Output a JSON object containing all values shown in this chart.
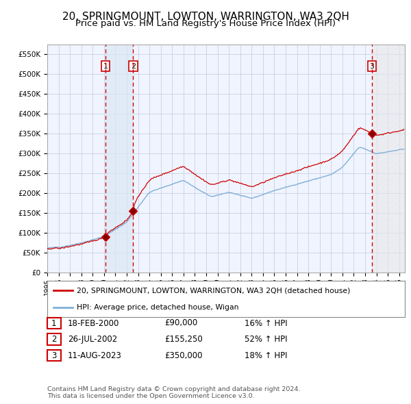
{
  "title": "20, SPRINGMOUNT, LOWTON, WARRINGTON, WA3 2QH",
  "subtitle": "Price paid vs. HM Land Registry's House Price Index (HPI)",
  "title_fontsize": 11,
  "subtitle_fontsize": 9.5,
  "background_color": "#ffffff",
  "plot_bg_color": "#f0f4ff",
  "grid_color": "#c8d0e0",
  "sale_color": "#cc0000",
  "hpi_color": "#7fb0d8",
  "ylim": [
    0,
    575000
  ],
  "yticks": [
    0,
    50000,
    100000,
    150000,
    200000,
    250000,
    300000,
    350000,
    400000,
    450000,
    500000,
    550000
  ],
  "ytick_labels": [
    "£0",
    "£50K",
    "£100K",
    "£150K",
    "£200K",
    "£250K",
    "£300K",
    "£350K",
    "£400K",
    "£450K",
    "£500K",
    "£550K"
  ],
  "xlim_start": 1995.3,
  "xlim_end": 2026.5,
  "xticks": [
    1995,
    1996,
    1997,
    1998,
    1999,
    2000,
    2001,
    2002,
    2003,
    2004,
    2005,
    2006,
    2007,
    2008,
    2009,
    2010,
    2011,
    2012,
    2013,
    2014,
    2015,
    2016,
    2017,
    2018,
    2019,
    2020,
    2021,
    2022,
    2023,
    2024,
    2025,
    2026
  ],
  "sale1_date": 2000.13,
  "sale1_price": 90000,
  "sale2_date": 2002.57,
  "sale2_price": 155250,
  "sale3_date": 2023.61,
  "sale3_price": 350000,
  "sale_vline_color": "#cc0000",
  "sale_box_color": "#cc0000",
  "sale_shade_color": "#dce8f5",
  "legend_sale_label": "20, SPRINGMOUNT, LOWTON, WARRINGTON, WA3 2QH (detached house)",
  "legend_hpi_label": "HPI: Average price, detached house, Wigan",
  "table_rows": [
    {
      "num": "1",
      "date": "18-FEB-2000",
      "price": "£90,000",
      "change": "16% ↑ HPI"
    },
    {
      "num": "2",
      "date": "26-JUL-2002",
      "price": "£155,250",
      "change": "52% ↑ HPI"
    },
    {
      "num": "3",
      "date": "11-AUG-2023",
      "price": "£350,000",
      "change": "18% ↑ HPI"
    }
  ],
  "footnote": "Contains HM Land Registry data © Crown copyright and database right 2024.\nThis data is licensed under the Open Government Licence v3.0."
}
